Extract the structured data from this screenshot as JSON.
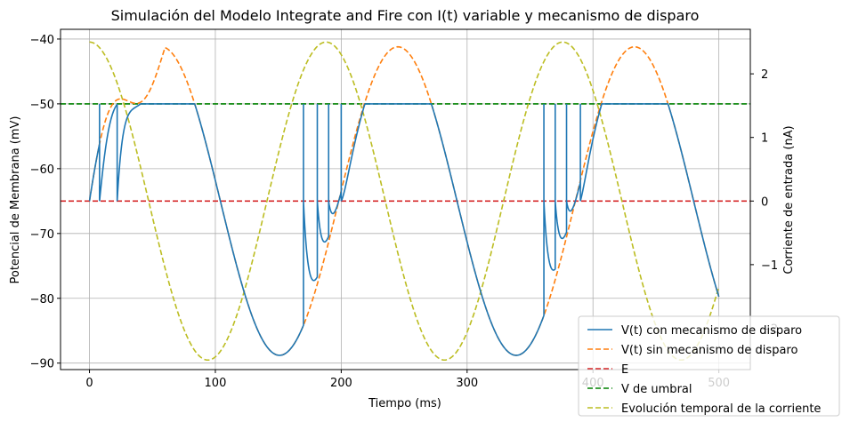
{
  "chart_data": {
    "type": "line",
    "title": "Simulación del Modelo Integrate and Fire con I(t) variable y mecanismo de disparo",
    "xlabel": "Tiempo (ms)",
    "ylabel": "Potencial de Membrana (mV)",
    "ylabel_right": "Corriente de entrada (nA)",
    "xlim": [
      -23,
      525
    ],
    "ylim": [
      -91,
      -38.5
    ],
    "ylim_right": [
      -2.65,
      2.7
    ],
    "x_ticks": [
      0,
      100,
      200,
      300,
      400,
      500
    ],
    "y_ticks": [
      -90,
      -80,
      -70,
      -60,
      -50,
      -40
    ],
    "y_ticks_right": [
      -2,
      -1,
      0,
      1,
      2
    ],
    "grid": true,
    "legend_position": "bottom-right",
    "params": {
      "E_mV": -65,
      "threshold_mV": -50,
      "current_amplitude_nA": 2.5,
      "current_period_ms": 188,
      "t_end_ms": 500,
      "reset_mV": -65
    },
    "series": [
      {
        "name": "V(t) con mecanismo de disparo",
        "color": "#1f77b4",
        "style": "solid",
        "axis": "left"
      },
      {
        "name": "V(t) sin mecanismo de disparo",
        "color": "#ff7f0e",
        "style": "dashed",
        "axis": "left"
      },
      {
        "name": "E",
        "color": "#d62728",
        "style": "dashed",
        "axis": "left",
        "value": -65
      },
      {
        "name": "V de umbral",
        "color": "#008000",
        "style": "dashed",
        "axis": "left",
        "value": -50
      },
      {
        "name": "Evolución temporal de la corriente",
        "color": "#bcbd22",
        "style": "dashed",
        "axis": "right"
      }
    ],
    "spike_times_ms": [
      8,
      22,
      170,
      181,
      190,
      200,
      361,
      370,
      379,
      390
    ]
  }
}
